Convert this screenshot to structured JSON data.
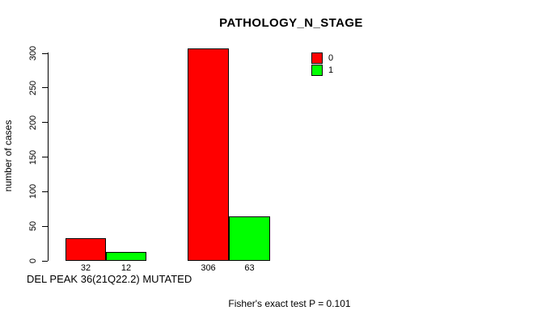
{
  "chart_data": {
    "type": "bar",
    "title": "PATHOLOGY_N_STAGE",
    "ylabel": "number of cases",
    "xlabel": "DEL PEAK 36(21Q22.2) MUTATED",
    "annotation": "Fisher's exact test P = 0.101",
    "categories": [
      "",
      ""
    ],
    "series": [
      {
        "name": "0",
        "color": "#FF0000",
        "values": [
          32,
          306
        ]
      },
      {
        "name": "1",
        "color": "#00FF00",
        "values": [
          12,
          63
        ]
      }
    ],
    "bar_value_labels": [
      "32",
      "12",
      "306",
      "63"
    ],
    "y_ticks": [
      0,
      50,
      100,
      150,
      200,
      250,
      300
    ],
    "ylim": [
      0,
      306
    ],
    "grid": false,
    "legend_position": "top-right-inside",
    "background_color": "#FFFFFF",
    "axis_color": "#000000"
  }
}
